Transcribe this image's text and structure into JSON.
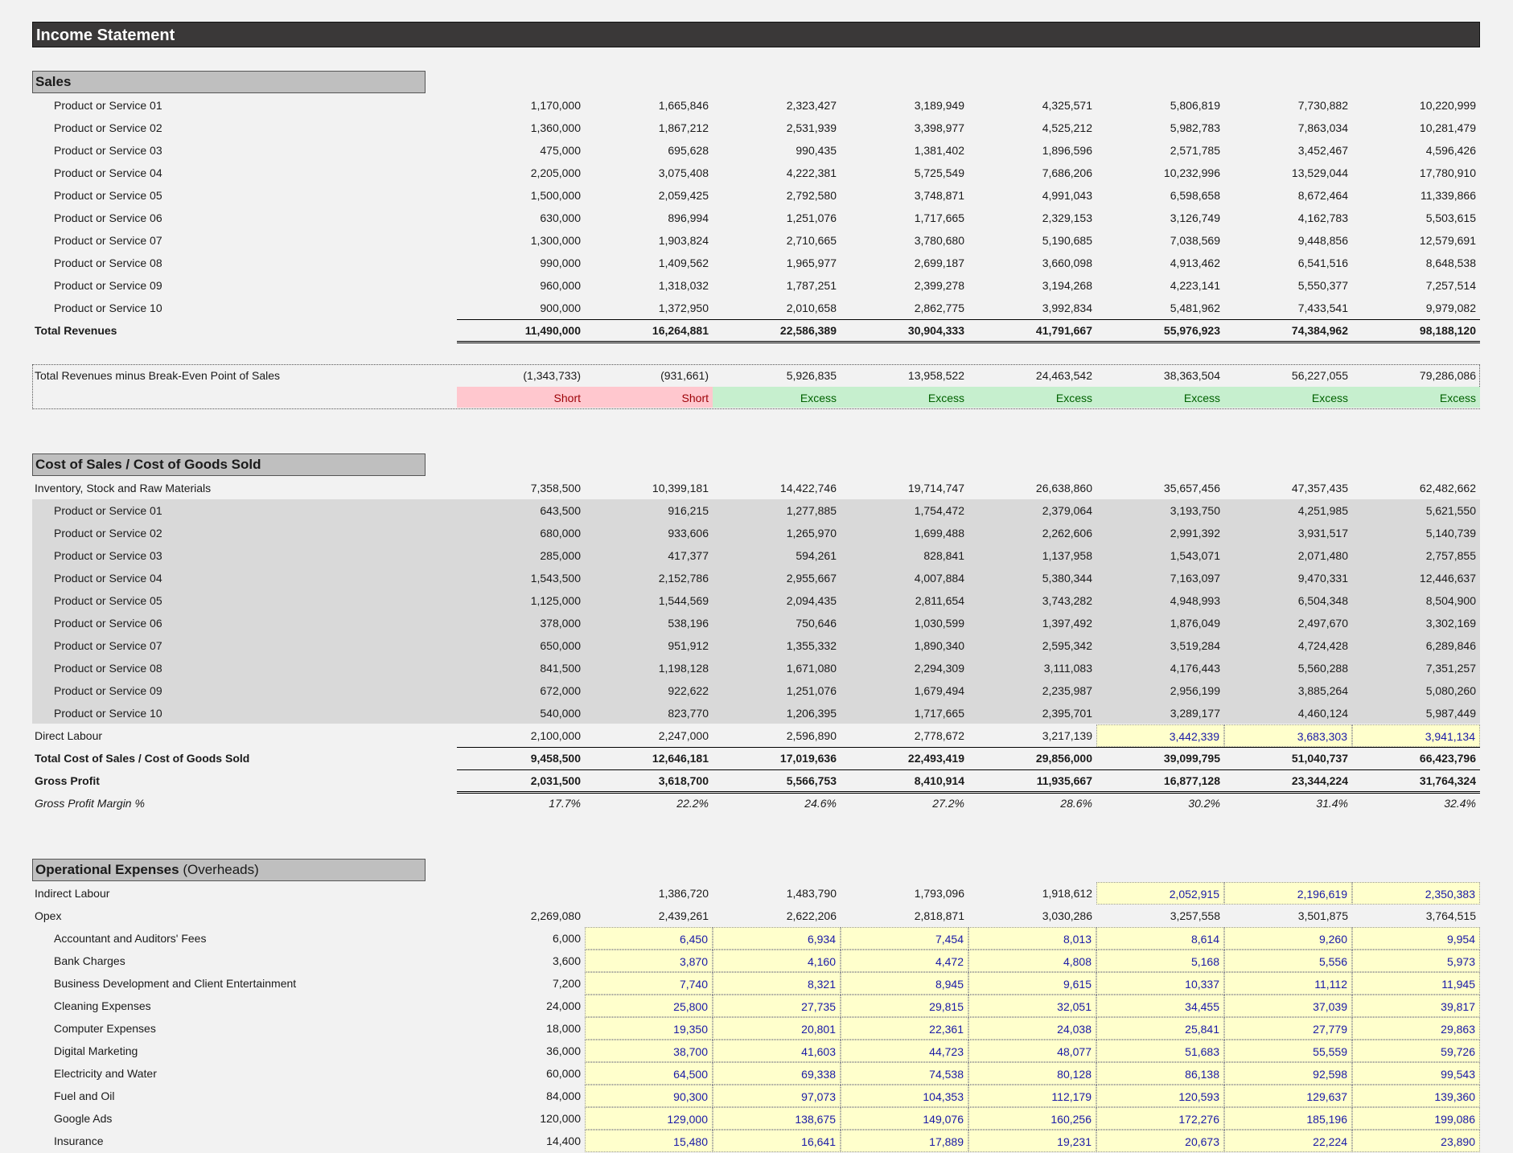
{
  "title": "Income Statement",
  "sales": {
    "heading": "Sales",
    "rows": [
      {
        "label": "Product or Service 01",
        "values": [
          "1,170,000",
          "1,665,846",
          "2,323,427",
          "3,189,949",
          "4,325,571",
          "5,806,819",
          "7,730,882",
          "10,220,999"
        ]
      },
      {
        "label": "Product or Service 02",
        "values": [
          "1,360,000",
          "1,867,212",
          "2,531,939",
          "3,398,977",
          "4,525,212",
          "5,982,783",
          "7,863,034",
          "10,281,479"
        ]
      },
      {
        "label": "Product or Service 03",
        "values": [
          "475,000",
          "695,628",
          "990,435",
          "1,381,402",
          "1,896,596",
          "2,571,785",
          "3,452,467",
          "4,596,426"
        ]
      },
      {
        "label": "Product or Service 04",
        "values": [
          "2,205,000",
          "3,075,408",
          "4,222,381",
          "5,725,549",
          "7,686,206",
          "10,232,996",
          "13,529,044",
          "17,780,910"
        ]
      },
      {
        "label": "Product or Service 05",
        "values": [
          "1,500,000",
          "2,059,425",
          "2,792,580",
          "3,748,871",
          "4,991,043",
          "6,598,658",
          "8,672,464",
          "11,339,866"
        ]
      },
      {
        "label": "Product or Service 06",
        "values": [
          "630,000",
          "896,994",
          "1,251,076",
          "1,717,665",
          "2,329,153",
          "3,126,749",
          "4,162,783",
          "5,503,615"
        ]
      },
      {
        "label": "Product or Service 07",
        "values": [
          "1,300,000",
          "1,903,824",
          "2,710,665",
          "3,780,680",
          "5,190,685",
          "7,038,569",
          "9,448,856",
          "12,579,691"
        ]
      },
      {
        "label": "Product or Service 08",
        "values": [
          "990,000",
          "1,409,562",
          "1,965,977",
          "2,699,187",
          "3,660,098",
          "4,913,462",
          "6,541,516",
          "8,648,538"
        ]
      },
      {
        "label": "Product or Service 09",
        "values": [
          "960,000",
          "1,318,032",
          "1,787,251",
          "2,399,278",
          "3,194,268",
          "4,223,141",
          "5,550,377",
          "7,257,514"
        ]
      },
      {
        "label": "Product or Service 10",
        "values": [
          "900,000",
          "1,372,950",
          "2,010,658",
          "2,862,775",
          "3,992,834",
          "5,481,962",
          "7,433,541",
          "9,979,082"
        ]
      }
    ],
    "total": {
      "label": "Total Revenues",
      "values": [
        "11,490,000",
        "16,264,881",
        "22,586,389",
        "30,904,333",
        "41,791,667",
        "55,976,923",
        "74,384,962",
        "98,188,120"
      ]
    }
  },
  "breakeven": {
    "label": "Total Revenues minus Break-Even Point of Sales",
    "values": [
      "(1,343,733)",
      "(931,661)",
      "5,926,835",
      "13,958,522",
      "24,463,542",
      "38,363,504",
      "56,227,055",
      "79,286,086"
    ],
    "status": [
      "Short",
      "Short",
      "Excess",
      "Excess",
      "Excess",
      "Excess",
      "Excess",
      "Excess"
    ]
  },
  "cogs": {
    "heading": "Cost of Sales / Cost of Goods Sold",
    "inventory": {
      "label": "Inventory, Stock and Raw Materials",
      "values": [
        "7,358,500",
        "10,399,181",
        "14,422,746",
        "19,714,747",
        "26,638,860",
        "35,657,456",
        "47,357,435",
        "62,482,662"
      ]
    },
    "rows": [
      {
        "label": "Product or Service 01",
        "values": [
          "643,500",
          "916,215",
          "1,277,885",
          "1,754,472",
          "2,379,064",
          "3,193,750",
          "4,251,985",
          "5,621,550"
        ]
      },
      {
        "label": "Product or Service 02",
        "values": [
          "680,000",
          "933,606",
          "1,265,970",
          "1,699,488",
          "2,262,606",
          "2,991,392",
          "3,931,517",
          "5,140,739"
        ]
      },
      {
        "label": "Product or Service 03",
        "values": [
          "285,000",
          "417,377",
          "594,261",
          "828,841",
          "1,137,958",
          "1,543,071",
          "2,071,480",
          "2,757,855"
        ]
      },
      {
        "label": "Product or Service 04",
        "values": [
          "1,543,500",
          "2,152,786",
          "2,955,667",
          "4,007,884",
          "5,380,344",
          "7,163,097",
          "9,470,331",
          "12,446,637"
        ]
      },
      {
        "label": "Product or Service 05",
        "values": [
          "1,125,000",
          "1,544,569",
          "2,094,435",
          "2,811,654",
          "3,743,282",
          "4,948,993",
          "6,504,348",
          "8,504,900"
        ]
      },
      {
        "label": "Product or Service 06",
        "values": [
          "378,000",
          "538,196",
          "750,646",
          "1,030,599",
          "1,397,492",
          "1,876,049",
          "2,497,670",
          "3,302,169"
        ]
      },
      {
        "label": "Product or Service 07",
        "values": [
          "650,000",
          "951,912",
          "1,355,332",
          "1,890,340",
          "2,595,342",
          "3,519,284",
          "4,724,428",
          "6,289,846"
        ]
      },
      {
        "label": "Product or Service 08",
        "values": [
          "841,500",
          "1,198,128",
          "1,671,080",
          "2,294,309",
          "3,111,083",
          "4,176,443",
          "5,560,288",
          "7,351,257"
        ]
      },
      {
        "label": "Product or Service 09",
        "values": [
          "672,000",
          "922,622",
          "1,251,076",
          "1,679,494",
          "2,235,987",
          "2,956,199",
          "3,885,264",
          "5,080,260"
        ]
      },
      {
        "label": "Product or Service 10",
        "values": [
          "540,000",
          "823,770",
          "1,206,395",
          "1,717,665",
          "2,395,701",
          "3,289,177",
          "4,460,124",
          "5,987,449"
        ]
      }
    ],
    "direct_labour": {
      "label": "Direct Labour",
      "values": [
        "2,100,000",
        "2,247,000",
        "2,596,890",
        "2,778,672",
        "3,217,139",
        "3,442,339",
        "3,683,303",
        "3,941,134"
      ]
    },
    "total": {
      "label": "Total Cost of Sales / Cost of Goods Sold",
      "values": [
        "9,458,500",
        "12,646,181",
        "17,019,636",
        "22,493,419",
        "29,856,000",
        "39,099,795",
        "51,040,737",
        "66,423,796"
      ]
    },
    "gross_profit": {
      "label": "Gross Profit",
      "values": [
        "2,031,500",
        "3,618,700",
        "5,566,753",
        "8,410,914",
        "11,935,667",
        "16,877,128",
        "23,344,224",
        "31,764,324"
      ]
    },
    "margin": {
      "label": "Gross Profit Margin %",
      "values": [
        "17.7%",
        "22.2%",
        "24.6%",
        "27.2%",
        "28.6%",
        "30.2%",
        "31.4%",
        "32.4%"
      ]
    }
  },
  "opex": {
    "heading": "Operational Expenses",
    "heading_sub": "(Overheads)",
    "indirect_labour": {
      "label": "Indirect Labour",
      "values": [
        "",
        "1,386,720",
        "1,483,790",
        "1,793,096",
        "1,918,612",
        "2,052,915",
        "2,196,619",
        "2,350,383"
      ]
    },
    "opex_total": {
      "label": "Opex",
      "values": [
        "2,269,080",
        "2,439,261",
        "2,622,206",
        "2,818,871",
        "3,030,286",
        "3,257,558",
        "3,501,875",
        "3,764,515"
      ]
    },
    "rows": [
      {
        "label": "Accountant and Auditors' Fees",
        "values": [
          "6,000",
          "6,450",
          "6,934",
          "7,454",
          "8,013",
          "8,614",
          "9,260",
          "9,954"
        ]
      },
      {
        "label": "Bank Charges",
        "values": [
          "3,600",
          "3,870",
          "4,160",
          "4,472",
          "4,808",
          "5,168",
          "5,556",
          "5,973"
        ]
      },
      {
        "label": "Business Development and Client Entertainment",
        "values": [
          "7,200",
          "7,740",
          "8,321",
          "8,945",
          "9,615",
          "10,337",
          "11,112",
          "11,945"
        ]
      },
      {
        "label": "Cleaning Expenses",
        "values": [
          "24,000",
          "25,800",
          "27,735",
          "29,815",
          "32,051",
          "34,455",
          "37,039",
          "39,817"
        ]
      },
      {
        "label": "Computer Expenses",
        "values": [
          "18,000",
          "19,350",
          "20,801",
          "22,361",
          "24,038",
          "25,841",
          "27,779",
          "29,863"
        ]
      },
      {
        "label": "Digital Marketing",
        "values": [
          "36,000",
          "38,700",
          "41,603",
          "44,723",
          "48,077",
          "51,683",
          "55,559",
          "59,726"
        ]
      },
      {
        "label": "Electricity and Water",
        "values": [
          "60,000",
          "64,500",
          "69,338",
          "74,538",
          "80,128",
          "86,138",
          "92,598",
          "99,543"
        ]
      },
      {
        "label": "Fuel and Oil",
        "values": [
          "84,000",
          "90,300",
          "97,073",
          "104,353",
          "112,179",
          "120,593",
          "129,637",
          "139,360"
        ]
      },
      {
        "label": "Google Ads",
        "values": [
          "120,000",
          "129,000",
          "138,675",
          "149,076",
          "160,256",
          "172,276",
          "185,196",
          "199,086"
        ]
      },
      {
        "label": "Insurance",
        "values": [
          "14,400",
          "15,480",
          "16,641",
          "17,889",
          "19,231",
          "20,673",
          "22,224",
          "23,890"
        ]
      }
    ]
  }
}
